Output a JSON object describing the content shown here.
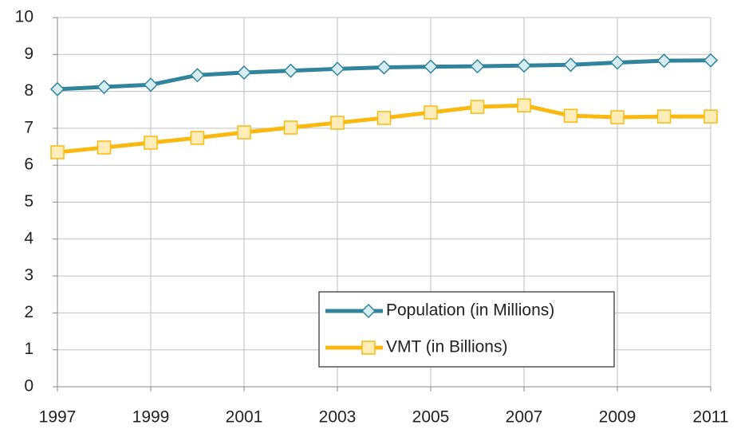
{
  "chart_data": {
    "type": "line",
    "x": [
      1997,
      1998,
      1999,
      2000,
      2001,
      2002,
      2003,
      2004,
      2005,
      2006,
      2007,
      2008,
      2009,
      2010,
      2011
    ],
    "series": [
      {
        "name": "Population (in Millions)",
        "color": "#31849b",
        "marker_fill": "#d5edf3",
        "marker": "diamond",
        "values": [
          8.06,
          8.12,
          8.18,
          8.44,
          8.51,
          8.56,
          8.61,
          8.65,
          8.67,
          8.68,
          8.7,
          8.72,
          8.78,
          8.83,
          8.84
        ]
      },
      {
        "name": "VMT (in Billions)",
        "color": "#f9b90f",
        "marker_fill": "#fdedb9",
        "marker": "square",
        "values": [
          6.35,
          6.48,
          6.61,
          6.74,
          6.89,
          7.02,
          7.15,
          7.28,
          7.43,
          7.58,
          7.62,
          7.34,
          7.3,
          7.32,
          7.32
        ]
      }
    ],
    "xlim": [
      1997,
      2011
    ],
    "xticks": [
      1997,
      1999,
      2001,
      2003,
      2005,
      2007,
      2009,
      2011
    ],
    "ylim": [
      0,
      10
    ],
    "yticks": [
      0,
      1,
      2,
      3,
      4,
      5,
      6,
      7,
      8,
      9,
      10
    ],
    "grid": true
  }
}
